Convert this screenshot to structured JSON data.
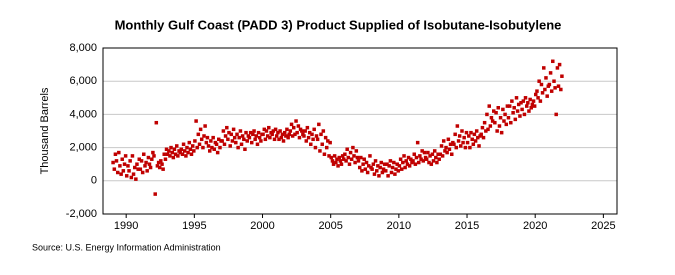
{
  "chart_data": {
    "type": "scatter",
    "title": "Monthly Gulf Coast (PADD 3) Product Supplied of Isobutane-Isobutylene",
    "y_label": "Thousand Barrels",
    "source": "Source: U.S. Energy Information Administration",
    "color": "#c00000",
    "grid": true,
    "xlim": [
      1988.3,
      2026
    ],
    "ylim": [
      -2000,
      8000
    ],
    "xticks": [
      1990,
      1995,
      2000,
      2005,
      2010,
      2015,
      2020,
      2025
    ],
    "yticks": [
      {
        "value": -2000,
        "label": "-2,000"
      },
      0,
      {
        "value": 2000,
        "label": "2,000"
      },
      {
        "value": 4000,
        "label": "4,000"
      },
      {
        "value": 6000,
        "label": "6,000"
      },
      {
        "value": 8000,
        "label": "8,000"
      }
    ],
    "x": [
      1989.04,
      1989.13,
      1989.21,
      1989.29,
      1989.38,
      1989.46,
      1989.54,
      1989.63,
      1989.71,
      1989.79,
      1989.88,
      1989.96,
      1990.04,
      1990.13,
      1990.21,
      1990.29,
      1990.38,
      1990.46,
      1990.54,
      1990.63,
      1990.71,
      1990.79,
      1990.88,
      1990.96,
      1991.04,
      1991.13,
      1991.21,
      1991.29,
      1991.38,
      1991.46,
      1991.54,
      1991.63,
      1991.71,
      1991.79,
      1991.88,
      1991.96,
      1992.04,
      1992.13,
      1992.21,
      1992.29,
      1992.38,
      1992.46,
      1992.54,
      1992.63,
      1992.71,
      1992.79,
      1992.88,
      1992.96,
      1993.04,
      1993.13,
      1993.21,
      1993.29,
      1993.38,
      1993.46,
      1993.54,
      1993.63,
      1993.71,
      1993.79,
      1993.88,
      1993.96,
      1994.04,
      1994.13,
      1994.21,
      1994.29,
      1994.38,
      1994.46,
      1994.54,
      1994.63,
      1994.71,
      1994.79,
      1994.88,
      1994.96,
      1995.04,
      1995.13,
      1995.21,
      1995.29,
      1995.38,
      1995.46,
      1995.54,
      1995.63,
      1995.71,
      1995.79,
      1995.88,
      1995.96,
      1996.04,
      1996.13,
      1996.21,
      1996.29,
      1996.38,
      1996.46,
      1996.54,
      1996.63,
      1996.71,
      1996.79,
      1996.88,
      1996.96,
      1997.04,
      1997.13,
      1997.21,
      1997.29,
      1997.38,
      1997.46,
      1997.54,
      1997.63,
      1997.71,
      1997.79,
      1997.88,
      1997.96,
      1998.04,
      1998.13,
      1998.21,
      1998.29,
      1998.38,
      1998.46,
      1998.54,
      1998.63,
      1998.71,
      1998.79,
      1998.88,
      1998.96,
      1999.04,
      1999.13,
      1999.21,
      1999.29,
      1999.38,
      1999.46,
      1999.54,
      1999.63,
      1999.71,
      1999.79,
      1999.88,
      1999.96,
      2000.04,
      2000.13,
      2000.21,
      2000.29,
      2000.38,
      2000.46,
      2000.54,
      2000.63,
      2000.71,
      2000.79,
      2000.88,
      2000.96,
      2001.04,
      2001.13,
      2001.21,
      2001.29,
      2001.38,
      2001.46,
      2001.54,
      2001.63,
      2001.71,
      2001.79,
      2001.88,
      2001.96,
      2002.04,
      2002.13,
      2002.21,
      2002.29,
      2002.38,
      2002.46,
      2002.54,
      2002.63,
      2002.71,
      2002.79,
      2002.88,
      2002.96,
      2003.04,
      2003.13,
      2003.21,
      2003.29,
      2003.38,
      2003.46,
      2003.54,
      2003.63,
      2003.71,
      2003.79,
      2003.88,
      2003.96,
      2004.04,
      2004.13,
      2004.21,
      2004.29,
      2004.38,
      2004.46,
      2004.54,
      2004.63,
      2004.71,
      2004.79,
      2004.88,
      2004.96,
      2005.04,
      2005.13,
      2005.21,
      2005.29,
      2005.38,
      2005.46,
      2005.54,
      2005.63,
      2005.71,
      2005.79,
      2005.88,
      2005.96,
      2006.04,
      2006.13,
      2006.21,
      2006.29,
      2006.38,
      2006.46,
      2006.54,
      2006.63,
      2006.71,
      2006.79,
      2006.88,
      2006.96,
      2007.04,
      2007.13,
      2007.21,
      2007.29,
      2007.38,
      2007.46,
      2007.54,
      2007.63,
      2007.71,
      2007.79,
      2007.88,
      2007.96,
      2008.04,
      2008.13,
      2008.21,
      2008.29,
      2008.38,
      2008.46,
      2008.54,
      2008.63,
      2008.71,
      2008.79,
      2008.88,
      2008.96,
      2009.04,
      2009.13,
      2009.21,
      2009.29,
      2009.38,
      2009.46,
      2009.54,
      2009.63,
      2009.71,
      2009.79,
      2009.88,
      2009.96,
      2010.04,
      2010.13,
      2010.21,
      2010.29,
      2010.38,
      2010.46,
      2010.54,
      2010.63,
      2010.71,
      2010.79,
      2010.88,
      2010.96,
      2011.04,
      2011.13,
      2011.21,
      2011.29,
      2011.38,
      2011.46,
      2011.54,
      2011.63,
      2011.71,
      2011.79,
      2011.88,
      2011.96,
      2012.04,
      2012.13,
      2012.21,
      2012.29,
      2012.38,
      2012.46,
      2012.54,
      2012.63,
      2012.71,
      2012.79,
      2012.88,
      2012.96,
      2013.04,
      2013.13,
      2013.21,
      2013.29,
      2013.38,
      2013.46,
      2013.54,
      2013.63,
      2013.71,
      2013.79,
      2013.88,
      2013.96,
      2014.04,
      2014.13,
      2014.21,
      2014.29,
      2014.38,
      2014.46,
      2014.54,
      2014.63,
      2014.71,
      2014.79,
      2014.88,
      2014.96,
      2015.04,
      2015.13,
      2015.21,
      2015.29,
      2015.38,
      2015.46,
      2015.54,
      2015.63,
      2015.71,
      2015.79,
      2015.88,
      2015.96,
      2016.04,
      2016.13,
      2016.21,
      2016.29,
      2016.38,
      2016.46,
      2016.54,
      2016.63,
      2016.71,
      2016.79,
      2016.88,
      2016.96,
      2017.04,
      2017.13,
      2017.21,
      2017.29,
      2017.38,
      2017.46,
      2017.54,
      2017.63,
      2017.71,
      2017.79,
      2017.88,
      2017.96,
      2018.04,
      2018.13,
      2018.21,
      2018.29,
      2018.38,
      2018.46,
      2018.54,
      2018.63,
      2018.71,
      2018.79,
      2018.88,
      2018.96,
      2019.04,
      2019.13,
      2019.21,
      2019.29,
      2019.38,
      2019.46,
      2019.54,
      2019.63,
      2019.71,
      2019.79,
      2019.88,
      2019.96,
      2020.04,
      2020.13,
      2020.21,
      2020.29,
      2020.38,
      2020.46,
      2020.54,
      2020.63,
      2020.71,
      2020.79,
      2020.88,
      2020.96,
      2021.04,
      2021.13,
      2021.21,
      2021.29,
      2021.38,
      2021.46,
      2021.54,
      2021.63,
      2021.71,
      2021.79,
      2021.88,
      2021.96
    ],
    "values": [
      1100,
      700,
      1600,
      1200,
      500,
      1700,
      900,
      400,
      1300,
      600,
      1000,
      1500,
      300,
      900,
      600,
      1200,
      200,
      1500,
      400,
      800,
      100,
      1000,
      700,
      1300,
      700,
      1200,
      500,
      1600,
      900,
      1100,
      600,
      1400,
      1000,
      800,
      1300,
      1700,
      1500,
      -800,
      3500,
      900,
      1100,
      800,
      1200,
      1000,
      700,
      1600,
      1300,
      1900,
      1600,
      1800,
      1500,
      2000,
      1700,
      1400,
      1900,
      1600,
      2100,
      1500,
      1800,
      1700,
      1900,
      1600,
      2200,
      1800,
      1500,
      2000,
      1700,
      2300,
      1900,
      1600,
      2100,
      1800,
      2400,
      3600,
      2000,
      2800,
      2200,
      3100,
      2500,
      2000,
      2700,
      3300,
      2300,
      2600,
      2100,
      1800,
      2400,
      2000,
      2600,
      1900,
      2300,
      2200,
      1700,
      2500,
      2000,
      2400,
      2400,
      3000,
      2200,
      2700,
      3200,
      2500,
      2900,
      2100,
      2800,
      2400,
      3100,
      2600,
      2300,
      2800,
      2000,
      2600,
      3000,
      2200,
      2700,
      2500,
      1900,
      2900,
      2400,
      2700,
      2600,
      2900,
      2300,
      2800,
      3000,
      2500,
      2700,
      2200,
      2900,
      2600,
      2400,
      2800,
      2800,
      3100,
      2500,
      3000,
      2700,
      3200,
      2600,
      2900,
      2800,
      3000,
      2500,
      3100,
      2700,
      2900,
      2500,
      3000,
      2600,
      2800,
      2400,
      2900,
      2700,
      3100,
      2600,
      2800,
      3000,
      3400,
      2700,
      3200,
      2800,
      3600,
      2900,
      3300,
      2600,
      3100,
      3000,
      2800,
      2700,
      3000,
      2400,
      3200,
      2600,
      2900,
      2200,
      2800,
      2500,
      3100,
      2000,
      2700,
      2500,
      3400,
      1800,
      2800,
      2200,
      3000,
      1600,
      2600,
      2000,
      2400,
      1500,
      2300,
      1400,
      1200,
      1000,
      1500,
      1100,
      1300,
      900,
      1400,
      1200,
      1000,
      1500,
      1300,
      1600,
      1200,
      1900,
      1400,
      1000,
      1700,
      1300,
      2000,
      1500,
      1100,
      1800,
      1400,
      1200,
      800,
      1400,
      600,
      1000,
      1300,
      700,
      1100,
      500,
      900,
      1500,
      800,
      700,
      1000,
      400,
      1200,
      600,
      900,
      300,
      800,
      1100,
      500,
      700,
      1000,
      600,
      1000,
      300,
      900,
      1200,
      500,
      800,
      1100,
      400,
      700,
      1000,
      600,
      900,
      1300,
      700,
      1100,
      1500,
      800,
      1200,
      1000,
      1400,
      900,
      1300,
      1100,
      1200,
      1600,
      1000,
      1400,
      2300,
      1100,
      1500,
      1300,
      1800,
      1200,
      1700,
      1400,
      1300,
      1700,
      1100,
      1500,
      1000,
      1600,
      1200,
      1800,
      1400,
      1100,
      1600,
      1300,
      1600,
      2100,
      1500,
      2400,
      1800,
      2000,
      1700,
      2500,
      1900,
      2200,
      1600,
      2300,
      2200,
      2800,
      2000,
      3300,
      2400,
      2700,
      2100,
      3000,
      2300,
      2600,
      2000,
      2900,
      2300,
      2700,
      2000,
      2900,
      2500,
      2200,
      2800,
      2400,
      3000,
      2600,
      2100,
      2700,
      2800,
      3200,
      2600,
      3500,
      3000,
      4000,
      3100,
      4500,
      3300,
      3800,
      3600,
      4200,
      3500,
      4100,
      3000,
      4400,
      3300,
      3800,
      2900,
      4300,
      3600,
      4000,
      3400,
      4500,
      3800,
      4500,
      3500,
      4800,
      4100,
      4400,
      3700,
      5000,
      4200,
      4600,
      3900,
      4700,
      4300,
      4800,
      4000,
      5000,
      4500,
      4700,
      4200,
      4900,
      4400,
      4600,
      4800,
      4500,
      5200,
      5400,
      5000,
      6000,
      4800,
      5800,
      5300,
      6800,
      5500,
      6200,
      5100,
      5700,
      5800,
      6500,
      5400,
      7200,
      6000,
      5600,
      4000,
      6800,
      5700,
      7000,
      5500,
      6300
    ]
  }
}
